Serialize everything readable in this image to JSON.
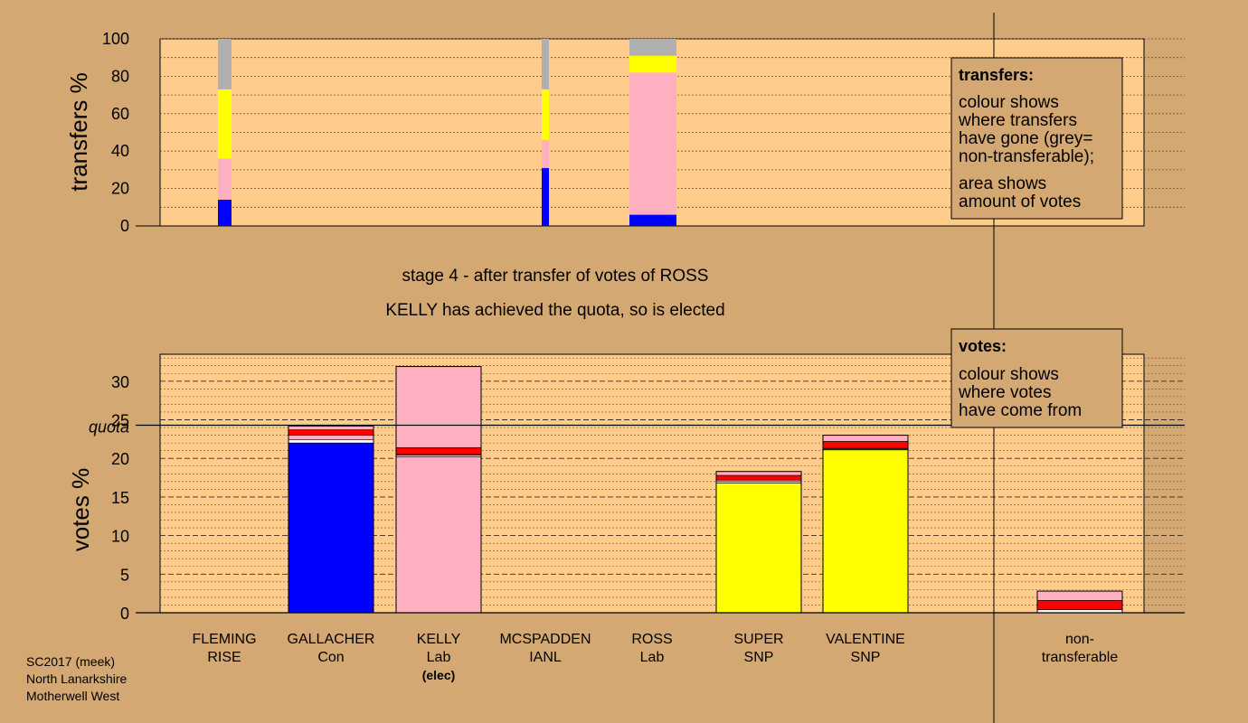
{
  "footer": {
    "lines": [
      "SC2017 (meek)",
      "North Lanarkshire",
      "Motherwell West"
    ]
  },
  "stage": {
    "line1": "stage 4 - after transfer of votes of ROSS",
    "line2": "KELLY has achieved the quota, so is elected"
  },
  "legend_transfers": {
    "title": "transfers:",
    "lines": [
      "colour shows",
      "where transfers",
      "have gone (grey=",
      "non-transferable);",
      "area shows",
      "amount of votes"
    ]
  },
  "legend_votes": {
    "title": "votes:",
    "lines": [
      "colour shows",
      "where votes",
      "have come from"
    ]
  },
  "colors": {
    "Con": "#0000ff",
    "Lab": "#ffb0c0",
    "SNP": "#ffff00",
    "Ind": "#ff0000",
    "nontransferable": "#b0b0b0",
    "background": "#d4a872",
    "plot": "#ffcc8c"
  },
  "chart_data": [
    {
      "type": "bar",
      "ylabel": "transfers %",
      "ylim": [
        0,
        100
      ],
      "yticks": [
        0,
        20,
        40,
        60,
        80,
        100
      ],
      "columns": [
        {
          "segments": [
            {
              "color": "#0000ff",
              "value": 14
            },
            {
              "color": "#ffb0c0",
              "value": 22
            },
            {
              "color": "#ffff00",
              "value": 37
            },
            {
              "color": "#b0b0b0",
              "value": 27
            }
          ]
        },
        {
          "segments": [
            {
              "color": "#0000ff",
              "value": 31
            },
            {
              "color": "#ffb0c0",
              "value": 15
            },
            {
              "color": "#ffff00",
              "value": 27
            },
            {
              "color": "#b0b0b0",
              "value": 27
            }
          ]
        },
        {
          "segments": [
            {
              "color": "#0000ff",
              "value": 6
            },
            {
              "color": "#ffb0c0",
              "value": 76
            },
            {
              "color": "#ffff00",
              "value": 9
            },
            {
              "color": "#b0b0b0",
              "value": 9
            }
          ]
        }
      ]
    },
    {
      "type": "bar",
      "ylabel": "votes %",
      "ylim": [
        0,
        32
      ],
      "yticks": [
        0,
        5,
        10,
        15,
        20,
        25,
        30
      ],
      "quota": {
        "label": "quota",
        "value": 24.3
      },
      "candidates": [
        {
          "name": "FLEMING",
          "party": "RISE",
          "segments": []
        },
        {
          "name": "GALLACHER",
          "party": "Con",
          "segments": [
            {
              "color": "#0000ff",
              "value": 22.0
            },
            {
              "color": "#ffffff",
              "value": 0.4
            },
            {
              "color": "#ffb0c0",
              "value": 0.6
            },
            {
              "color": "#ff0000",
              "value": 0.7
            },
            {
              "color": "#ffb0c0",
              "value": 0.5
            }
          ]
        },
        {
          "name": "KELLY",
          "party": "Lab",
          "elected": "(elec)",
          "segments": [
            {
              "color": "#ffb0c0",
              "value": 20.2
            },
            {
              "color": "#ffffff",
              "value": 0.2
            },
            {
              "color": "#ffb0c0",
              "value": 0.1
            },
            {
              "color": "#ff0000",
              "value": 0.9
            },
            {
              "color": "#ffb0c0",
              "value": 10.5
            }
          ]
        },
        {
          "name": "MCSPADDEN",
          "party": "IANL",
          "segments": []
        },
        {
          "name": "ROSS",
          "party": "Lab",
          "segments": []
        },
        {
          "name": "SUPER",
          "party": "SNP",
          "segments": [
            {
              "color": "#ffff00",
              "value": 16.8
            },
            {
              "color": "#ffffff",
              "value": 0.2
            },
            {
              "color": "#ffb0c0",
              "value": 0.2
            },
            {
              "color": "#ff0000",
              "value": 0.6
            },
            {
              "color": "#ffb0c0",
              "value": 0.5
            }
          ]
        },
        {
          "name": "VALENTINE",
          "party": "SNP",
          "segments": [
            {
              "color": "#ffff00",
              "value": 21.1
            },
            {
              "color": "#ffffff",
              "value": 0.1
            },
            {
              "color": "#ffb0c0",
              "value": 0.1
            },
            {
              "color": "#ff0000",
              "value": 0.9
            },
            {
              "color": "#ffb0c0",
              "value": 0.8
            }
          ]
        }
      ],
      "nontransferable": {
        "label1": "non-",
        "label2": "transferable",
        "segments": [
          {
            "color": "#ffffff",
            "value": 0.4
          },
          {
            "color": "#ff0000",
            "value": 1.2
          },
          {
            "color": "#ffb0c0",
            "value": 1.2
          }
        ]
      }
    }
  ]
}
